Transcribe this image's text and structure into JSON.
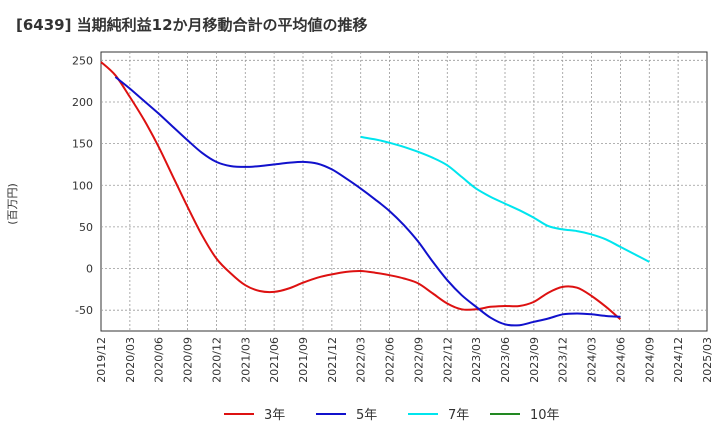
{
  "chart_data": {
    "type": "line",
    "title": "[6439]  当期純利益12か月移動合計の平均値の推移",
    "ylabel": "(百万円)",
    "xlabel": "",
    "ylim": [
      -75,
      260
    ],
    "yticks": [
      250,
      200,
      150,
      100,
      50,
      0,
      -50
    ],
    "xticks": [
      "2019/12",
      "2020/03",
      "2020/06",
      "2020/09",
      "2020/12",
      "2021/03",
      "2021/06",
      "2021/09",
      "2021/12",
      "2022/03",
      "2022/06",
      "2022/09",
      "2022/12",
      "2023/03",
      "2023/06",
      "2023/09",
      "2023/12",
      "2024/03",
      "2024/06",
      "2024/09",
      "2024/12",
      "2025/03"
    ],
    "grid": true,
    "legend_position": "bottom",
    "series": [
      {
        "name": "3年",
        "color": "#dd1111",
        "points": [
          [
            0,
            248
          ],
          [
            0.5,
            232
          ],
          [
            1,
            206
          ],
          [
            1.5,
            178
          ],
          [
            2,
            146
          ],
          [
            2.5,
            110
          ],
          [
            3,
            74
          ],
          [
            3.5,
            40
          ],
          [
            4,
            12
          ],
          [
            4.5,
            -6
          ],
          [
            5,
            -20
          ],
          [
            5.5,
            -27
          ],
          [
            6,
            -28
          ],
          [
            6.5,
            -24
          ],
          [
            7,
            -17
          ],
          [
            7.5,
            -11
          ],
          [
            8,
            -7
          ],
          [
            8.5,
            -4
          ],
          [
            9,
            -3
          ],
          [
            9.5,
            -5
          ],
          [
            10,
            -8
          ],
          [
            10.5,
            -12
          ],
          [
            11,
            -18
          ],
          [
            11.5,
            -30
          ],
          [
            12,
            -42
          ],
          [
            12.5,
            -49
          ],
          [
            13,
            -49
          ],
          [
            13.5,
            -46
          ],
          [
            14,
            -45
          ],
          [
            14.5,
            -45
          ],
          [
            15,
            -40
          ],
          [
            15.5,
            -29
          ],
          [
            16,
            -22
          ],
          [
            16.5,
            -23
          ],
          [
            17,
            -33
          ],
          [
            17.5,
            -46
          ],
          [
            18,
            -61
          ]
        ]
      },
      {
        "name": "5年",
        "color": "#1111cc",
        "points": [
          [
            0.5,
            230
          ],
          [
            1,
            216
          ],
          [
            1.5,
            201
          ],
          [
            2,
            186
          ],
          [
            2.5,
            170
          ],
          [
            3,
            154
          ],
          [
            3.5,
            139
          ],
          [
            4,
            128
          ],
          [
            4.5,
            123
          ],
          [
            5,
            122
          ],
          [
            5.5,
            123
          ],
          [
            6,
            125
          ],
          [
            6.5,
            127
          ],
          [
            7,
            128
          ],
          [
            7.5,
            126
          ],
          [
            8,
            119
          ],
          [
            8.5,
            108
          ],
          [
            9,
            96
          ],
          [
            9.5,
            83
          ],
          [
            10,
            69
          ],
          [
            10.5,
            52
          ],
          [
            11,
            32
          ],
          [
            11.5,
            8
          ],
          [
            12,
            -14
          ],
          [
            12.5,
            -32
          ],
          [
            13,
            -46
          ],
          [
            13.5,
            -59
          ],
          [
            14,
            -67
          ],
          [
            14.5,
            -68
          ],
          [
            15,
            -64
          ],
          [
            15.5,
            -60
          ],
          [
            16,
            -55
          ],
          [
            16.5,
            -54
          ],
          [
            17,
            -55
          ],
          [
            17.5,
            -57
          ],
          [
            18,
            -58
          ]
        ]
      },
      {
        "name": "7年",
        "color": "#00e5ee",
        "points": [
          [
            9,
            158
          ],
          [
            9.5,
            155
          ],
          [
            10,
            151
          ],
          [
            10.5,
            146
          ],
          [
            11,
            140
          ],
          [
            11.5,
            133
          ],
          [
            12,
            124
          ],
          [
            12.5,
            110
          ],
          [
            13,
            96
          ],
          [
            13.5,
            86
          ],
          [
            14,
            78
          ],
          [
            14.5,
            70
          ],
          [
            15,
            61
          ],
          [
            15.5,
            51
          ],
          [
            16,
            47
          ],
          [
            16.5,
            45
          ],
          [
            17,
            41
          ],
          [
            17.5,
            35
          ],
          [
            18,
            26
          ],
          [
            18.5,
            17
          ],
          [
            19,
            8
          ]
        ]
      },
      {
        "name": "10年",
        "color": "#228822",
        "points": []
      }
    ]
  }
}
